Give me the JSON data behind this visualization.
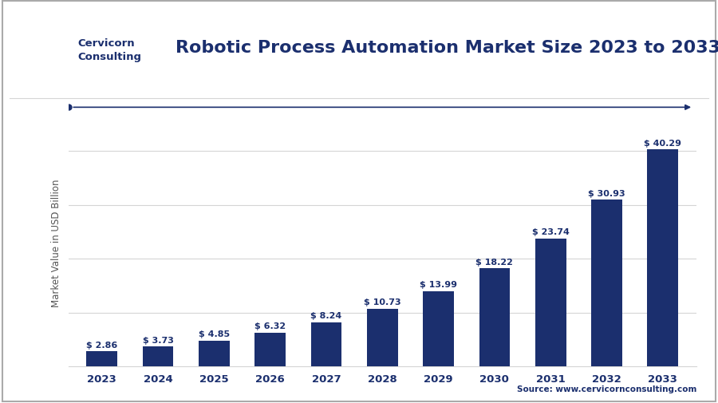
{
  "title": "Robotic Process Automation Market Size 2023 to 2033",
  "ylabel": "Market Value in USD Billion",
  "source": "Source: www.cervicornconsulting.com",
  "categories": [
    "2023",
    "2024",
    "2025",
    "2026",
    "2027",
    "2028",
    "2029",
    "2030",
    "2031",
    "2032",
    "2033"
  ],
  "values": [
    2.86,
    3.73,
    4.85,
    6.32,
    8.24,
    10.73,
    13.99,
    18.22,
    23.74,
    30.93,
    40.29
  ],
  "labels": [
    "$ 2.86",
    "$ 3.73",
    "$ 4.85",
    "$ 6.32",
    "$ 8.24",
    "$ 10.73",
    "$ 13.99",
    "$ 18.22",
    "$ 23.74",
    "$ 30.93",
    "$ 40.29"
  ],
  "bar_color": "#1b2f6e",
  "background_color": "#ffffff",
  "grid_color": "#d5d5d5",
  "title_color": "#1b2f6e",
  "logo_bg_color": "#1b2f6e",
  "arrow_color": "#1b2f6e",
  "border_color": "#aaaaaa",
  "source_color": "#1b2f6e",
  "tick_color": "#1b2f6e",
  "ylabel_color": "#555555",
  "ylim": [
    0,
    46
  ],
  "title_fontsize": 16,
  "label_fontsize": 8.0,
  "tick_fontsize": 9.5,
  "ylabel_fontsize": 8.5
}
